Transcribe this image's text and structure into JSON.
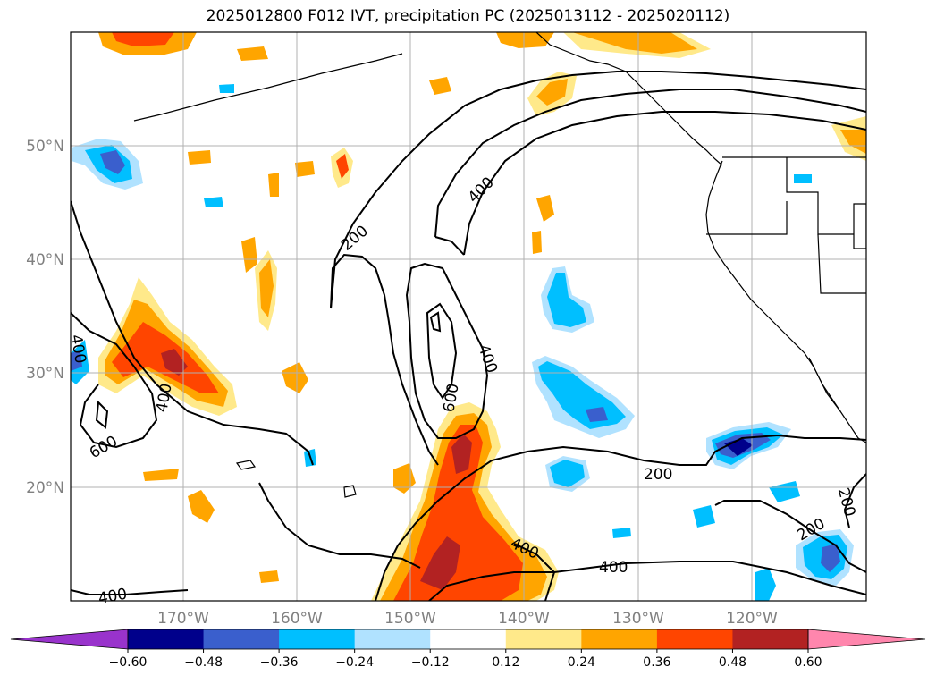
{
  "title": "2025012800 F012 IVT, precipitation PC (2025013112 - 2025020112)",
  "map": {
    "lat_labels": [
      "50°N",
      "40°N",
      "30°N",
      "20°N"
    ],
    "lon_labels": [
      "170°W",
      "160°W",
      "150°W",
      "140°W",
      "130°W",
      "120°W"
    ],
    "contour_labels": [
      "400",
      "200",
      "400",
      "600",
      "400",
      "400",
      "600",
      "200",
      "200",
      "200",
      "400",
      "400",
      "400"
    ]
  },
  "colorbar": {
    "tick_labels": [
      "−0.60",
      "−0.48",
      "−0.36",
      "−0.24",
      "−0.12",
      "0.12",
      "0.24",
      "0.36",
      "0.48",
      "0.60"
    ],
    "colors": {
      "below": "#9933cc",
      "bins": [
        "#00008b",
        "#3a5fcd",
        "#00bfff",
        "#b0e2ff",
        "#ffffff",
        "#ffe98a",
        "#ffa500",
        "#ff4500",
        "#b22222"
      ],
      "above": "#ff86ad"
    }
  }
}
